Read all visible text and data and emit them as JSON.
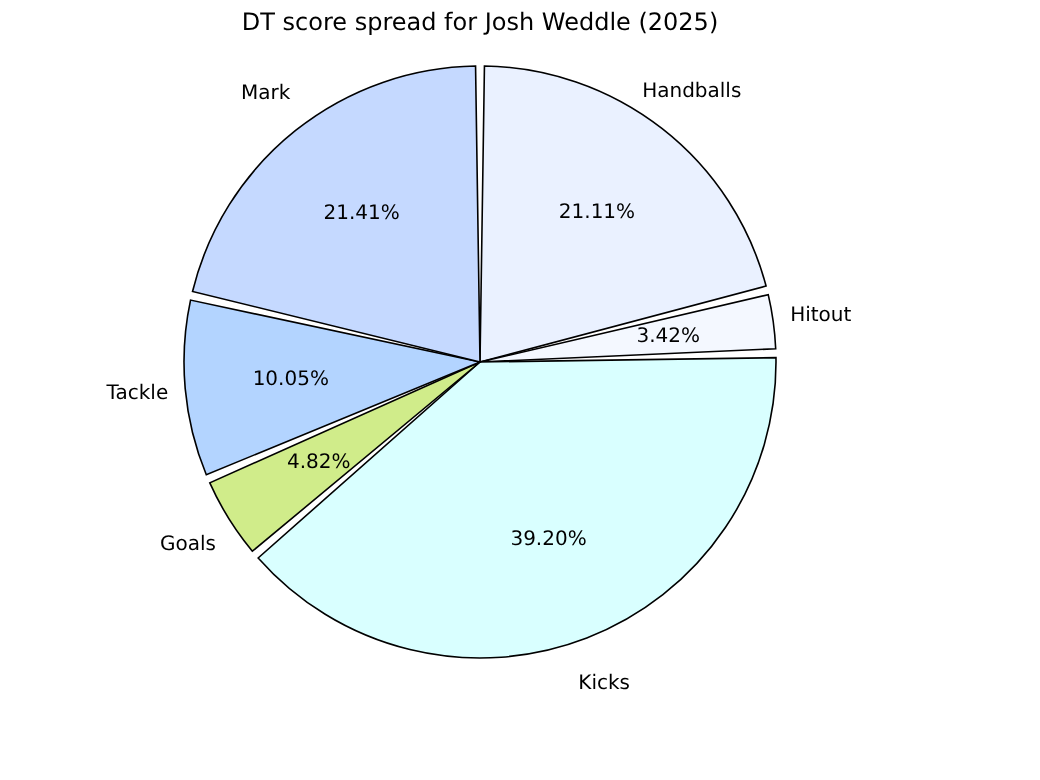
{
  "chart_data": {
    "type": "pie",
    "title": "DT score spread for Josh Weddle (2025)",
    "categories": [
      "Handballs",
      "Hitout",
      "Kicks",
      "Goals",
      "Tackle",
      "Mark"
    ],
    "values": [
      21.11,
      3.42,
      39.2,
      4.82,
      10.05,
      21.41
    ],
    "value_labels": [
      "21.11%",
      "3.42%",
      "39.20%",
      "4.82%",
      "10.05%",
      "21.41%"
    ],
    "colors": [
      "#eaf1ff",
      "#f4f8ff",
      "#d9ffff",
      "#d0ec8a",
      "#b3d4ff",
      "#c5d9ff"
    ],
    "legend": false
  }
}
